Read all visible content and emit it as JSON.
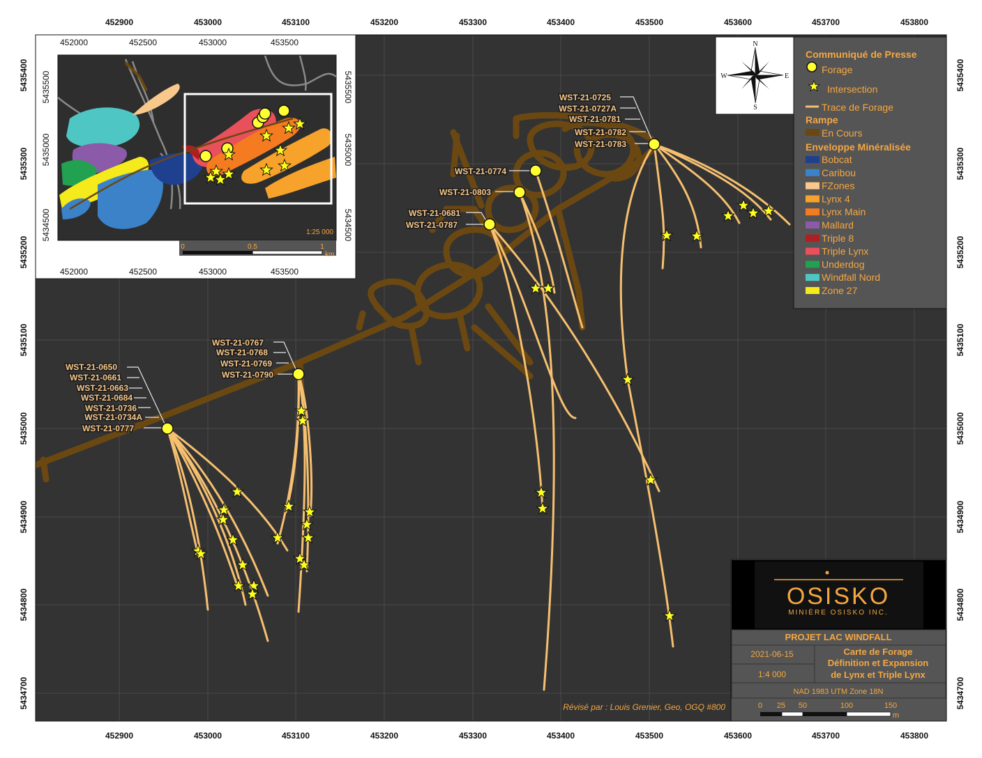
{
  "map": {
    "frame_x_ticks": [
      "452900",
      "453000",
      "453100",
      "453200",
      "453300",
      "453400",
      "453500",
      "453600",
      "453700",
      "453800"
    ],
    "frame_y_ticks": [
      "5435400",
      "5435300",
      "5435200",
      "5435100",
      "5435000",
      "5434900",
      "5434800",
      "5434700"
    ],
    "holes_west": [
      "WST-21-0650",
      "WST-21-0661",
      "WST-21-0663",
      "WST-21-0684",
      "WST-21-0736",
      "WST-21-0734A",
      "WST-21-0777"
    ],
    "holes_mid": [
      "WST-21-0767",
      "WST-21-0768",
      "WST-21-0769",
      "WST-21-0790"
    ],
    "holes_ne": [
      "WST-21-0725",
      "WST-21-0727A",
      "WST-21-0781",
      "WST-21-0782",
      "WST-21-0783"
    ],
    "hole_0774": "WST-21-0774",
    "hole_0803": "WST-21-0803",
    "holes_0681": [
      "WST-21-0681",
      "WST-21-0787"
    ],
    "revised_by": "Révisé par : Louis Grenier, Geo, OGQ #800"
  },
  "inset": {
    "x_ticks": [
      "452000",
      "452500",
      "453000",
      "453500"
    ],
    "y_ticks": [
      "5435500",
      "5435000",
      "5434500"
    ],
    "scale": "1:25 000",
    "scalebar": [
      "0",
      "0.5",
      "1"
    ],
    "scalebar_unit": "km"
  },
  "north_arrow": {
    "n": "N",
    "s": "S",
    "e": "E",
    "w": "W"
  },
  "legend": {
    "title": "Communiqué de Presse",
    "forage": "Forage",
    "intersection": "Intersection",
    "trace": "Trace de Forage",
    "rampe_title": "Rampe",
    "en_cours": "En Cours",
    "env_title": "Enveloppe Minéralisée",
    "zones": [
      {
        "name": "Bobcat",
        "color": "#1f3f8f"
      },
      {
        "name": "Caribou",
        "color": "#3c82c8"
      },
      {
        "name": "FZones",
        "color": "#f9c98c"
      },
      {
        "name": "Lynx 4",
        "color": "#f7a22a"
      },
      {
        "name": "Lynx Main",
        "color": "#f47b20"
      },
      {
        "name": "Mallard",
        "color": "#8b5aa8"
      },
      {
        "name": "Triple 8",
        "color": "#b01e22"
      },
      {
        "name": "Triple Lynx",
        "color": "#e8505b"
      },
      {
        "name": "Underdog",
        "color": "#22a150"
      },
      {
        "name": "Windfall Nord",
        "color": "#4ec7c4"
      },
      {
        "name": "Zone 27",
        "color": "#f4ea1c"
      }
    ]
  },
  "titleblock": {
    "logo": "OSISKO",
    "logo_sub": "MINIÈRE OSISKO INC.",
    "project": "PROJET LAC WINDFALL",
    "date": "2021-06-15",
    "scale": "1:4 000",
    "title_l1": "Carte de Forage",
    "title_l2": "Définition et Expansion",
    "title_l3": "de Lynx et Triple Lynx",
    "datum": "NAD 1983 UTM Zone 18N",
    "scalebar": [
      "0",
      "25",
      "50",
      "100",
      "150"
    ],
    "scalebar_unit": "m"
  },
  "colors": {
    "background": "#333333",
    "ramp": "#6b4812",
    "trace": "#f6c070",
    "collar": "#ffff33",
    "star": "#ffff22",
    "legend_text": "#f5a742"
  }
}
